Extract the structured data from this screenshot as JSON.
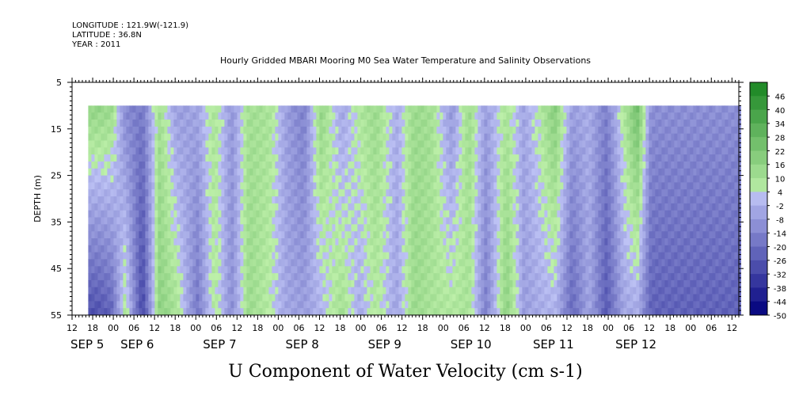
{
  "header": {
    "longitude": "LONGITUDE : 121.9W(-121.9)",
    "latitude": "LATITUDE : 36.8N",
    "year": "YEAR : 2011"
  },
  "chart_data": {
    "type": "heatmap",
    "title": "Hourly Gridded MBARI Mooring M0 Sea Water Temperature and Salinity Observations",
    "xlabel": "U Component of Water Velocity (cm s-1)",
    "ylabel": "DEPTH (m)",
    "ylim": [
      55,
      5
    ],
    "y_ticks": [
      5,
      15,
      25,
      35,
      45,
      55
    ],
    "data_depth_range": [
      10,
      55
    ],
    "x_hour_ticks": [
      "12",
      "18",
      "00",
      "06",
      "12",
      "18",
      "00",
      "06",
      "12",
      "18",
      "00",
      "06",
      "12",
      "18",
      "00",
      "06",
      "12",
      "18",
      "00",
      "06",
      "12",
      "18",
      "00",
      "06",
      "12",
      "18",
      "00",
      "06",
      "12",
      "18",
      "00",
      "06",
      "12"
    ],
    "x_date_labels": [
      "SEP  5",
      "SEP  6",
      "SEP  7",
      "SEP  8",
      "SEP  9",
      "SEP 10",
      "SEP 11",
      "SEP 12"
    ],
    "colorbar": {
      "levels": [
        "46",
        "40",
        "34",
        "28",
        "22",
        "16",
        "10",
        "4",
        "-2",
        "-8",
        "-14",
        "-20",
        "-26",
        "-32",
        "-38",
        "-44",
        "-50"
      ],
      "range": [
        -50,
        50
      ]
    },
    "velocity_by_time": [
      {
        "time": "SEP 5 19:00",
        "top": 12,
        "bottom": -30
      },
      {
        "time": "SEP 5 23:00",
        "top": 10,
        "bottom": -25
      },
      {
        "time": "SEP 6 03:00",
        "top": -15,
        "bottom": 5
      },
      {
        "time": "SEP 6 08:00",
        "top": -20,
        "bottom": -34
      },
      {
        "time": "SEP 6 13:00",
        "top": 8,
        "bottom": 14
      },
      {
        "time": "SEP 6 18:00",
        "top": -10,
        "bottom": 6
      },
      {
        "time": "SEP 7 00:00",
        "top": -8,
        "bottom": -20
      },
      {
        "time": "SEP 7 05:00",
        "top": 6,
        "bottom": 4
      },
      {
        "time": "SEP 7 10:00",
        "top": -12,
        "bottom": -14
      },
      {
        "time": "SEP 7 15:00",
        "top": 8,
        "bottom": 10
      },
      {
        "time": "SEP 7 21:00",
        "top": 6,
        "bottom": 2
      },
      {
        "time": "SEP 8 02:00",
        "top": -10,
        "bottom": -8
      },
      {
        "time": "SEP 8 07:00",
        "top": -18,
        "bottom": -10
      },
      {
        "time": "SEP 8 12:00",
        "top": 12,
        "bottom": -4
      },
      {
        "time": "SEP 8 18:00",
        "top": -8,
        "bottom": 8
      },
      {
        "time": "SEP 8 23:00",
        "top": 4,
        "bottom": -6
      },
      {
        "time": "SEP 9 04:00",
        "top": 10,
        "bottom": 4
      },
      {
        "time": "SEP 9 10:00",
        "top": -6,
        "bottom": -8
      },
      {
        "time": "SEP 9 15:00",
        "top": 10,
        "bottom": 10
      },
      {
        "time": "SEP 9 20:00",
        "top": 8,
        "bottom": 6
      },
      {
        "time": "SEP 10 02:00",
        "top": -12,
        "bottom": 4
      },
      {
        "time": "SEP 10 07:00",
        "top": 10,
        "bottom": 6
      },
      {
        "time": "SEP 10 12:00",
        "top": -10,
        "bottom": -18
      },
      {
        "time": "SEP 10 18:00",
        "top": 6,
        "bottom": 14
      },
      {
        "time": "SEP 10 23:00",
        "top": -8,
        "bottom": -10
      },
      {
        "time": "SEP 11 04:00",
        "top": 4,
        "bottom": -6
      },
      {
        "time": "SEP 11 08:00",
        "top": 16,
        "bottom": -4
      },
      {
        "time": "SEP 11 13:00",
        "top": -10,
        "bottom": -24
      },
      {
        "time": "SEP 11 18:00",
        "top": -6,
        "bottom": -8
      },
      {
        "time": "SEP 11 23:00",
        "top": -18,
        "bottom": -28
      },
      {
        "time": "SEP 12 04:00",
        "top": 4,
        "bottom": -8
      },
      {
        "time": "SEP 12 08:00",
        "top": 22,
        "bottom": -6
      },
      {
        "time": "SEP 12 12:00",
        "top": -14,
        "bottom": -26
      }
    ]
  }
}
